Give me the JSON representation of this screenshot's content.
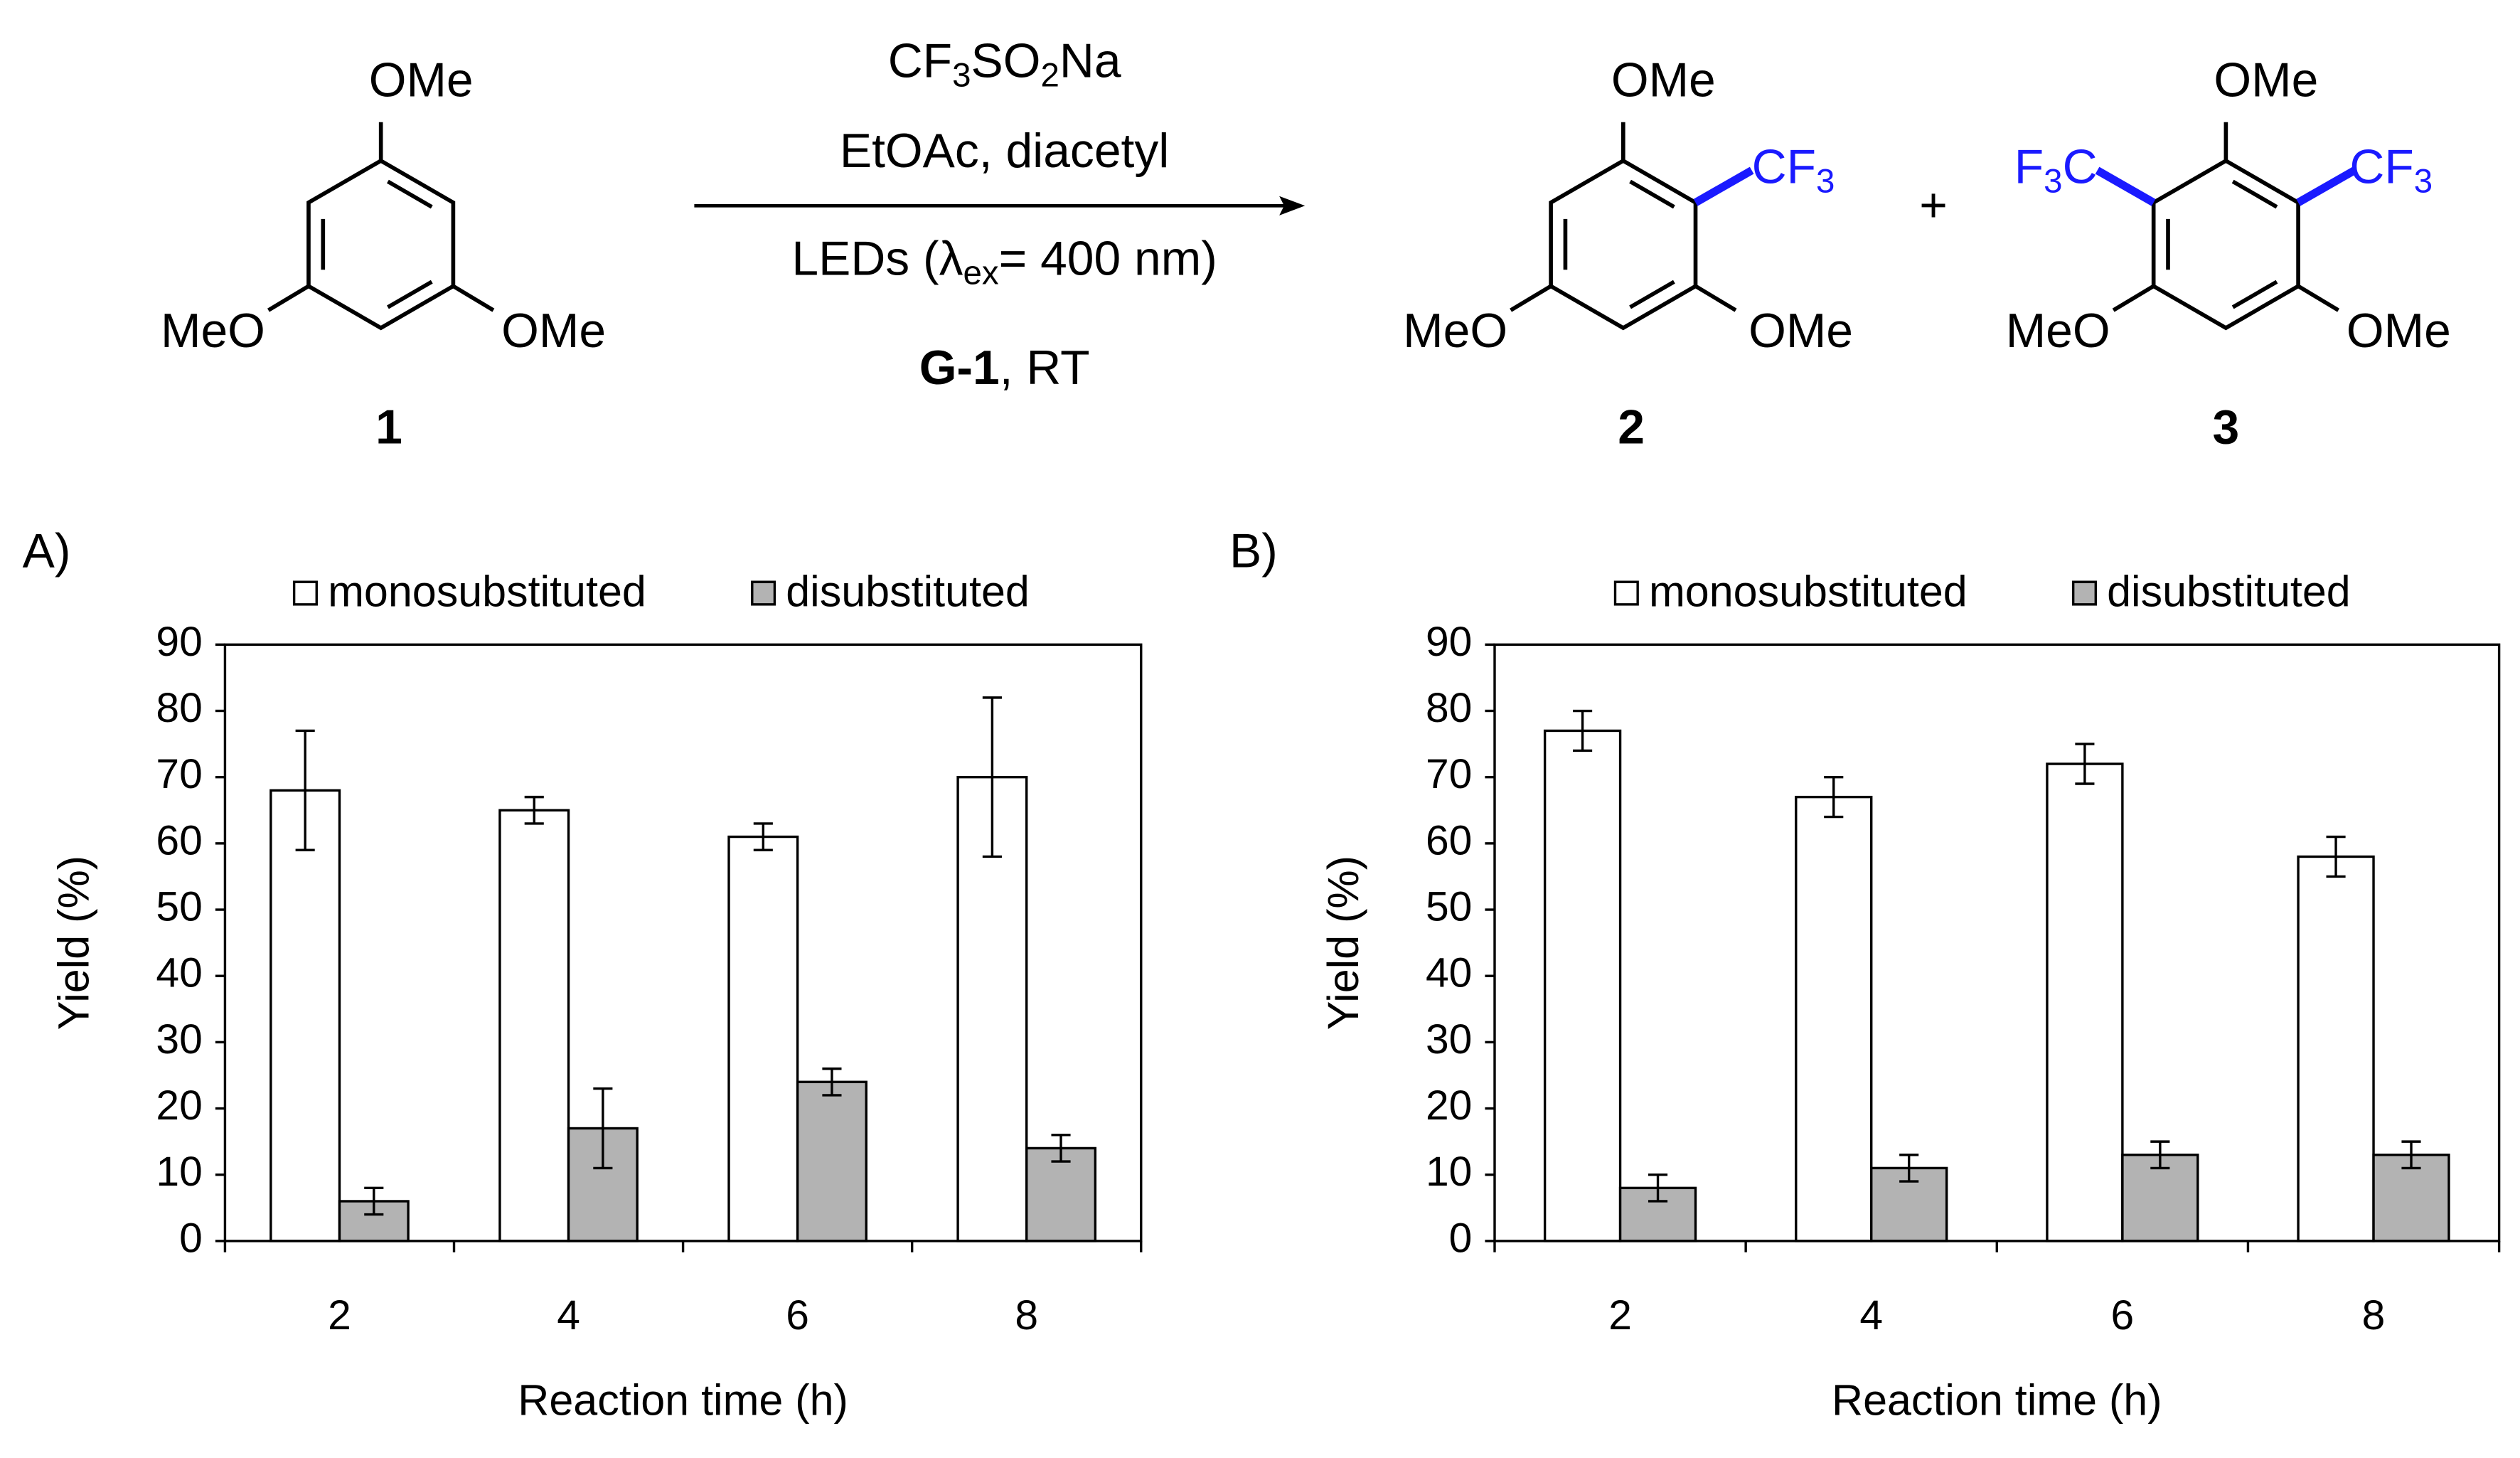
{
  "scheme": {
    "reactant": {
      "groups": [
        "OMe",
        "MeO",
        "OMe"
      ],
      "label": "1"
    },
    "reagent": [
      "CF",
      "3",
      "SO",
      "2",
      "Na"
    ],
    "solvent": "EtOAc, diacetyl",
    "light": [
      "LEDs (λ",
      "ex",
      "= 400 nm)"
    ],
    "catalyst": [
      "G-1",
      ", RT"
    ],
    "product_2": {
      "groups": [
        "OMe",
        "MeO",
        "OMe"
      ],
      "cf3": [
        "CF",
        "3"
      ],
      "label": "2"
    },
    "plus": "+",
    "product_3": {
      "groups": [
        "OMe",
        "MeO",
        "OMe"
      ],
      "cf3_left": [
        "F",
        "3",
        "C"
      ],
      "cf3_right": [
        "CF",
        "3"
      ],
      "label": "3"
    }
  },
  "chart_data": [
    {
      "type": "bar",
      "panel_label": "A)",
      "x_label": "Reaction time (h)",
      "y_label": "Yield (%)",
      "categories": [
        "2",
        "4",
        "6",
        "8"
      ],
      "series": [
        {
          "name": "monosubstituted",
          "color": "#ffffff",
          "values": [
            68,
            65,
            61,
            70
          ],
          "errors": [
            9,
            2,
            2,
            12
          ]
        },
        {
          "name": "disubstituted",
          "color": "#b3b3b3",
          "values": [
            6,
            17,
            24,
            14
          ],
          "errors": [
            2,
            6,
            2,
            2
          ]
        }
      ],
      "ylim": [
        0,
        90
      ],
      "yticks": [
        0,
        10,
        20,
        30,
        40,
        50,
        60,
        70,
        80,
        90
      ],
      "grid": false
    },
    {
      "type": "bar",
      "panel_label": "B)",
      "x_label": "Reaction time (h)",
      "y_label": "Yield (%)",
      "categories": [
        "2",
        "4",
        "6",
        "8"
      ],
      "series": [
        {
          "name": "monosubstituted",
          "color": "#ffffff",
          "values": [
            77,
            67,
            72,
            58
          ],
          "errors": [
            3,
            3,
            3,
            3
          ]
        },
        {
          "name": "disubstituted",
          "color": "#b3b3b3",
          "values": [
            8,
            11,
            13,
            13
          ],
          "errors": [
            2,
            2,
            2,
            2
          ]
        }
      ],
      "ylim": [
        0,
        90
      ],
      "yticks": [
        0,
        10,
        20,
        30,
        40,
        50,
        60,
        70,
        80,
        90
      ],
      "grid": false
    }
  ]
}
